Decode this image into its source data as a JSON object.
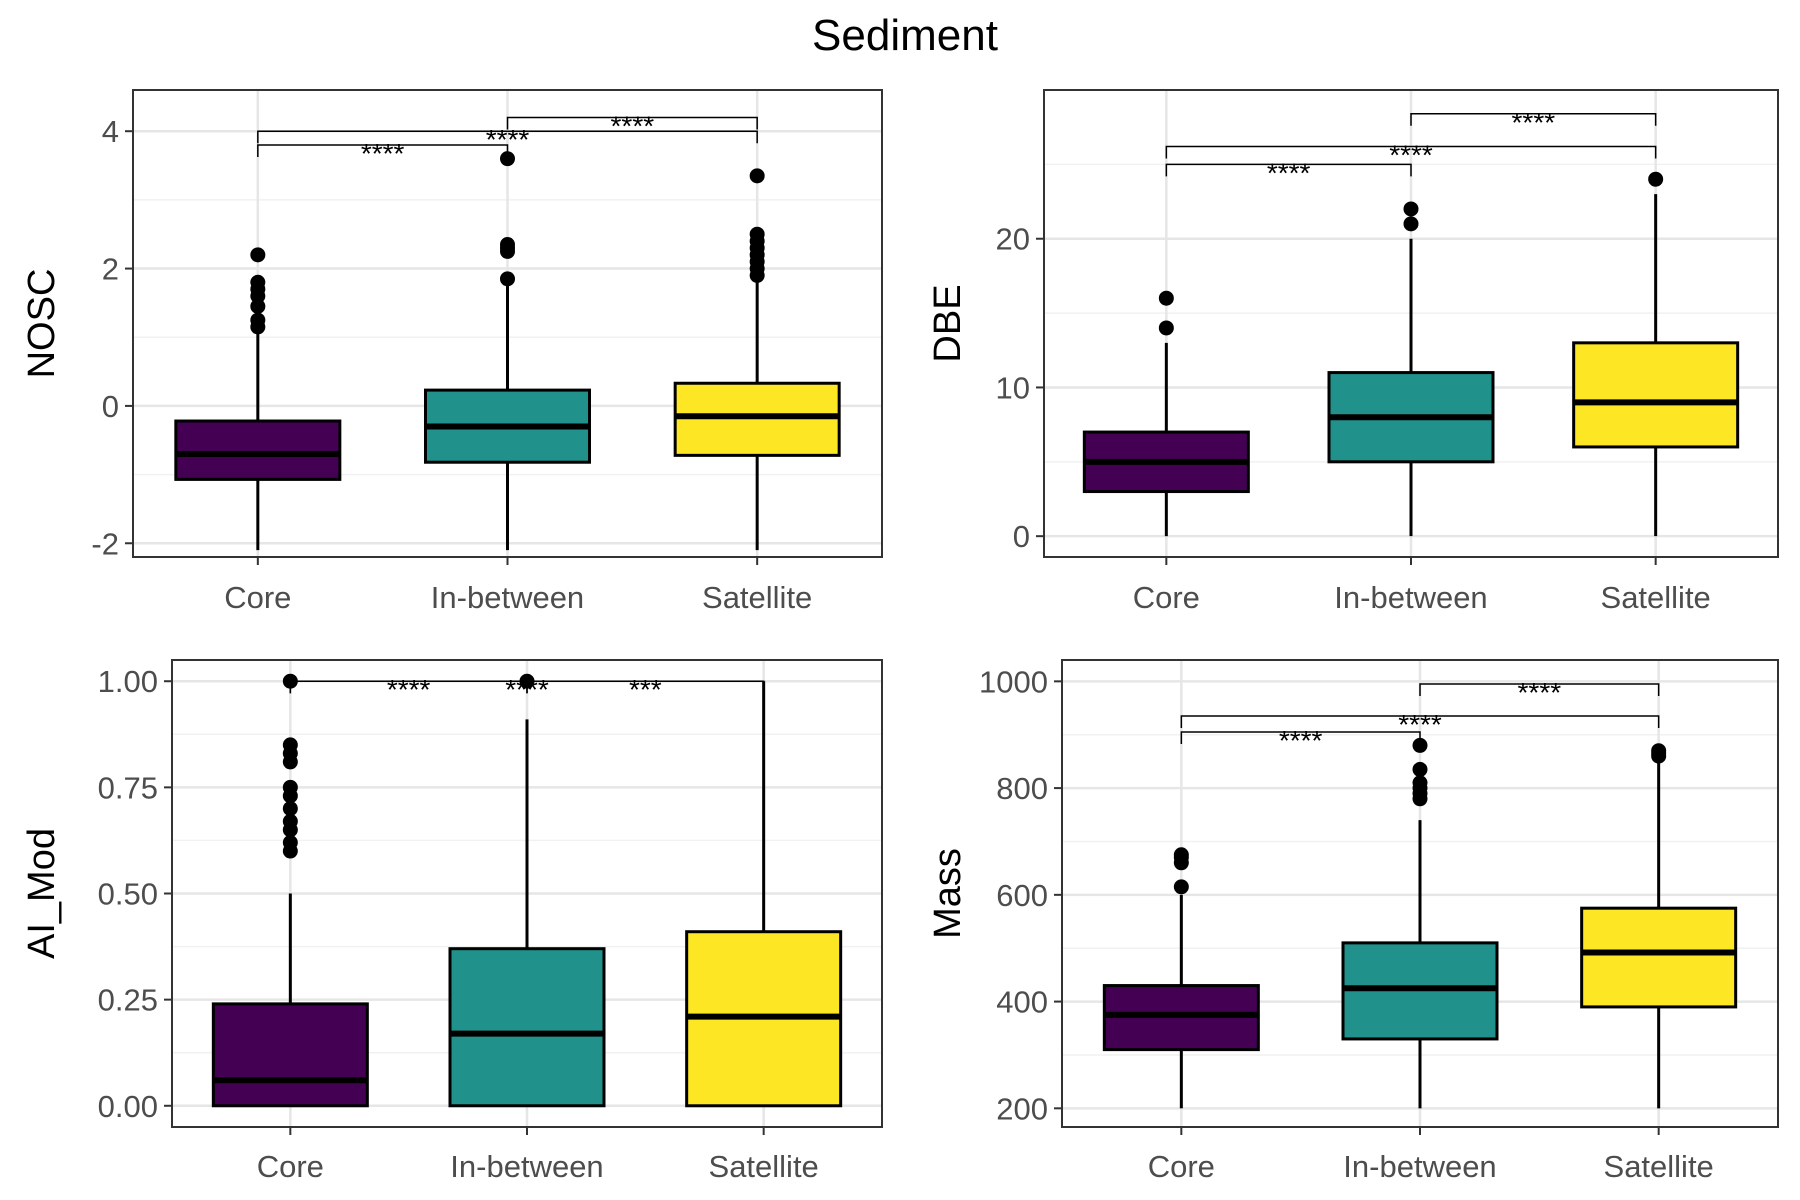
{
  "title": "Sediment",
  "colors": {
    "Core": "#440154",
    "In-between": "#21918C",
    "Satellite": "#FDE725"
  },
  "chart_data": [
    {
      "type": "box",
      "title": "",
      "xlabel": "",
      "ylabel": "NOSC",
      "categories": [
        "Core",
        "In-between",
        "Satellite"
      ],
      "ylim": [
        -2.2,
        4.6
      ],
      "yticks": [
        -2,
        0,
        2,
        4
      ],
      "ytick_labels": [
        "-2",
        "0",
        "2",
        "4"
      ],
      "grid": true,
      "boxes": [
        {
          "category": "Core",
          "min": -2.1,
          "q1": -1.07,
          "median": -0.7,
          "q3": -0.22,
          "max": 1.1,
          "outliers": [
            1.15,
            1.25,
            1.45,
            1.6,
            1.7,
            1.8,
            2.2
          ]
        },
        {
          "category": "In-between",
          "min": -2.1,
          "q1": -0.82,
          "median": -0.3,
          "q3": 0.23,
          "max": 1.8,
          "outliers": [
            1.85,
            2.25,
            2.3,
            2.35,
            3.6
          ]
        },
        {
          "category": "Satellite",
          "min": -2.1,
          "q1": -0.72,
          "median": -0.15,
          "q3": 0.33,
          "max": 1.85,
          "outliers": [
            1.9,
            2.0,
            2.1,
            2.2,
            2.3,
            2.4,
            2.5,
            3.35
          ]
        }
      ],
      "comparisons": [
        {
          "from": "Core",
          "to": "In-between",
          "label": "****",
          "y": 3.8
        },
        {
          "from": "Core",
          "to": "Satellite",
          "label": "****",
          "y": 4.0
        },
        {
          "from": "In-between",
          "to": "Satellite",
          "label": "****",
          "y": 4.2
        }
      ]
    },
    {
      "type": "box",
      "title": "",
      "xlabel": "",
      "ylabel": "DBE",
      "categories": [
        "Core",
        "In-between",
        "Satellite"
      ],
      "ylim": [
        -1.4,
        30
      ],
      "yticks": [
        0,
        10,
        20
      ],
      "ytick_labels": [
        "0",
        "10",
        "20"
      ],
      "grid": true,
      "boxes": [
        {
          "category": "Core",
          "min": 0,
          "q1": 3,
          "median": 5,
          "q3": 7,
          "max": 13,
          "outliers": [
            14,
            16
          ]
        },
        {
          "category": "In-between",
          "min": 0,
          "q1": 5,
          "median": 8,
          "q3": 11,
          "max": 20,
          "outliers": [
            21,
            22
          ]
        },
        {
          "category": "Satellite",
          "min": 0,
          "q1": 6,
          "median": 9,
          "q3": 13,
          "max": 23,
          "outliers": [
            24
          ]
        }
      ],
      "comparisons": [
        {
          "from": "Core",
          "to": "In-between",
          "label": "****",
          "y": 25
        },
        {
          "from": "Core",
          "to": "Satellite",
          "label": "****",
          "y": 26.2
        },
        {
          "from": "In-between",
          "to": "Satellite",
          "label": "****",
          "y": 28.4
        }
      ]
    },
    {
      "type": "box",
      "title": "",
      "xlabel": "",
      "ylabel": "AI_Mod",
      "categories": [
        "Core",
        "In-between",
        "Satellite"
      ],
      "ylim": [
        -0.05,
        1.05
      ],
      "yticks": [
        0,
        0.25,
        0.5,
        0.75,
        1
      ],
      "ytick_labels": [
        "0.00",
        "0.25",
        "0.50",
        "0.75",
        "1.00"
      ],
      "grid": true,
      "boxes": [
        {
          "category": "Core",
          "min": 0,
          "q1": 0,
          "median": 0.06,
          "q3": 0.24,
          "max": 0.5,
          "outliers": [
            0.6,
            0.62,
            0.65,
            0.67,
            0.7,
            0.73,
            0.75,
            0.81,
            0.83,
            0.85,
            1.0
          ]
        },
        {
          "category": "In-between",
          "min": 0,
          "q1": 0,
          "median": 0.17,
          "q3": 0.37,
          "max": 0.91,
          "outliers": [
            1.0
          ]
        },
        {
          "category": "Satellite",
          "min": 0,
          "q1": 0,
          "median": 0.21,
          "q3": 0.41,
          "max": 1.0,
          "outliers": []
        }
      ],
      "comparisons": [
        {
          "from": "Core",
          "to": "In-between",
          "label": "****",
          "y": 1.0
        },
        {
          "from": "Core",
          "to": "Satellite",
          "label": "****",
          "y": 1.0
        },
        {
          "from": "In-between",
          "to": "Satellite",
          "label": "***",
          "y": 1.0
        }
      ]
    },
    {
      "type": "box",
      "title": "",
      "xlabel": "",
      "ylabel": "Mass",
      "categories": [
        "Core",
        "In-between",
        "Satellite"
      ],
      "ylim": [
        165,
        1040
      ],
      "yticks": [
        200,
        400,
        600,
        800,
        1000
      ],
      "ytick_labels": [
        "200",
        "400",
        "600",
        "800",
        "1000"
      ],
      "grid": true,
      "boxes": [
        {
          "category": "Core",
          "min": 200,
          "q1": 310,
          "median": 375,
          "q3": 430,
          "max": 600,
          "outliers": [
            615,
            660,
            670,
            675
          ]
        },
        {
          "category": "In-between",
          "min": 200,
          "q1": 330,
          "median": 425,
          "q3": 510,
          "max": 740,
          "outliers": [
            780,
            790,
            800,
            810,
            835,
            880
          ]
        },
        {
          "category": "Satellite",
          "min": 200,
          "q1": 390,
          "median": 492,
          "q3": 575,
          "max": 855,
          "outliers": [
            860,
            865,
            870
          ]
        }
      ],
      "comparisons": [
        {
          "from": "Core",
          "to": "In-between",
          "label": "****",
          "y": 905
        },
        {
          "from": "Core",
          "to": "Satellite",
          "label": "****",
          "y": 935
        },
        {
          "from": "In-between",
          "to": "Satellite",
          "label": "****",
          "y": 995
        }
      ]
    }
  ]
}
